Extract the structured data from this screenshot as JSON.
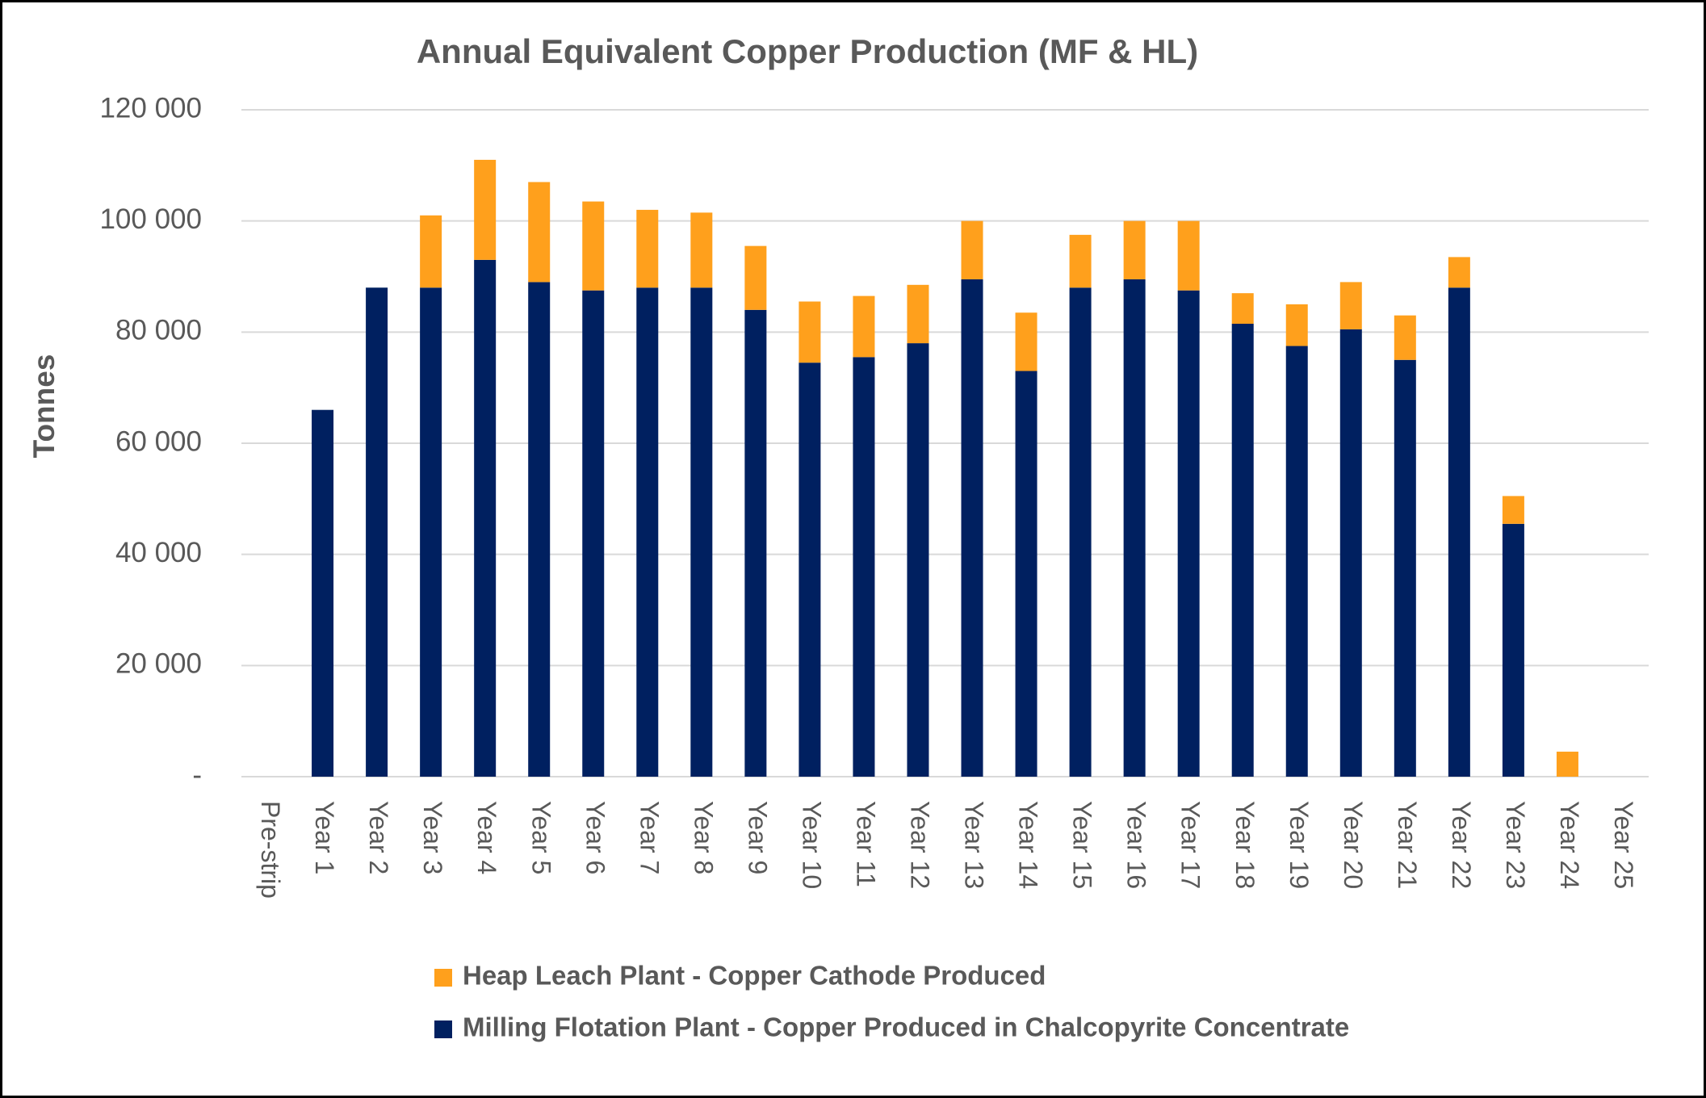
{
  "chart_data": {
    "type": "stacked_bar",
    "title": "Annual Equivalent Copper Production (MF & HL)",
    "y_label": "Tonnes",
    "categories": [
      "Pre-strip",
      "Year 1",
      "Year 2",
      "Year 3",
      "Year 4",
      "Year 5",
      "Year 6",
      "Year 7",
      "Year 8",
      "Year 9",
      "Year 10",
      "Year 11",
      "Year 12",
      "Year 13",
      "Year 14",
      "Year 15",
      "Year 16",
      "Year 17",
      "Year 18",
      "Year 19",
      "Year 20",
      "Year 21",
      "Year 22",
      "Year 23",
      "Year 24",
      "Year 25"
    ],
    "series": [
      {
        "name": "Milling Flotation Plant - Copper Produced in Chalcopyrite Concentrate",
        "color": "#002060",
        "values": [
          0,
          66000,
          88000,
          88000,
          93000,
          89000,
          87500,
          88000,
          88000,
          84000,
          74500,
          75500,
          78000,
          89500,
          73000,
          88000,
          89500,
          87500,
          81500,
          77500,
          80500,
          75000,
          88000,
          45500,
          0,
          0
        ]
      },
      {
        "name": "Heap Leach Plant - Copper Cathode Produced",
        "color": "#FFA01C",
        "values": [
          0,
          0,
          0,
          13000,
          18000,
          18000,
          16000,
          14000,
          13500,
          11500,
          11000,
          11000,
          10500,
          10500,
          10500,
          9500,
          10500,
          12500,
          5500,
          7500,
          8500,
          8000,
          5500,
          5000,
          4500,
          0
        ]
      }
    ],
    "ylim": [
      0,
      120000
    ],
    "yticks": [
      {
        "value": 0,
        "label": "-"
      },
      {
        "value": 20000,
        "label": "20 000"
      },
      {
        "value": 40000,
        "label": "40 000"
      },
      {
        "value": 60000,
        "label": "60 000"
      },
      {
        "value": 80000,
        "label": "80 000"
      },
      {
        "value": 100000,
        "label": "100 000"
      },
      {
        "value": 120000,
        "label": "120 000"
      }
    ],
    "grid": true,
    "legend": "bottom"
  }
}
